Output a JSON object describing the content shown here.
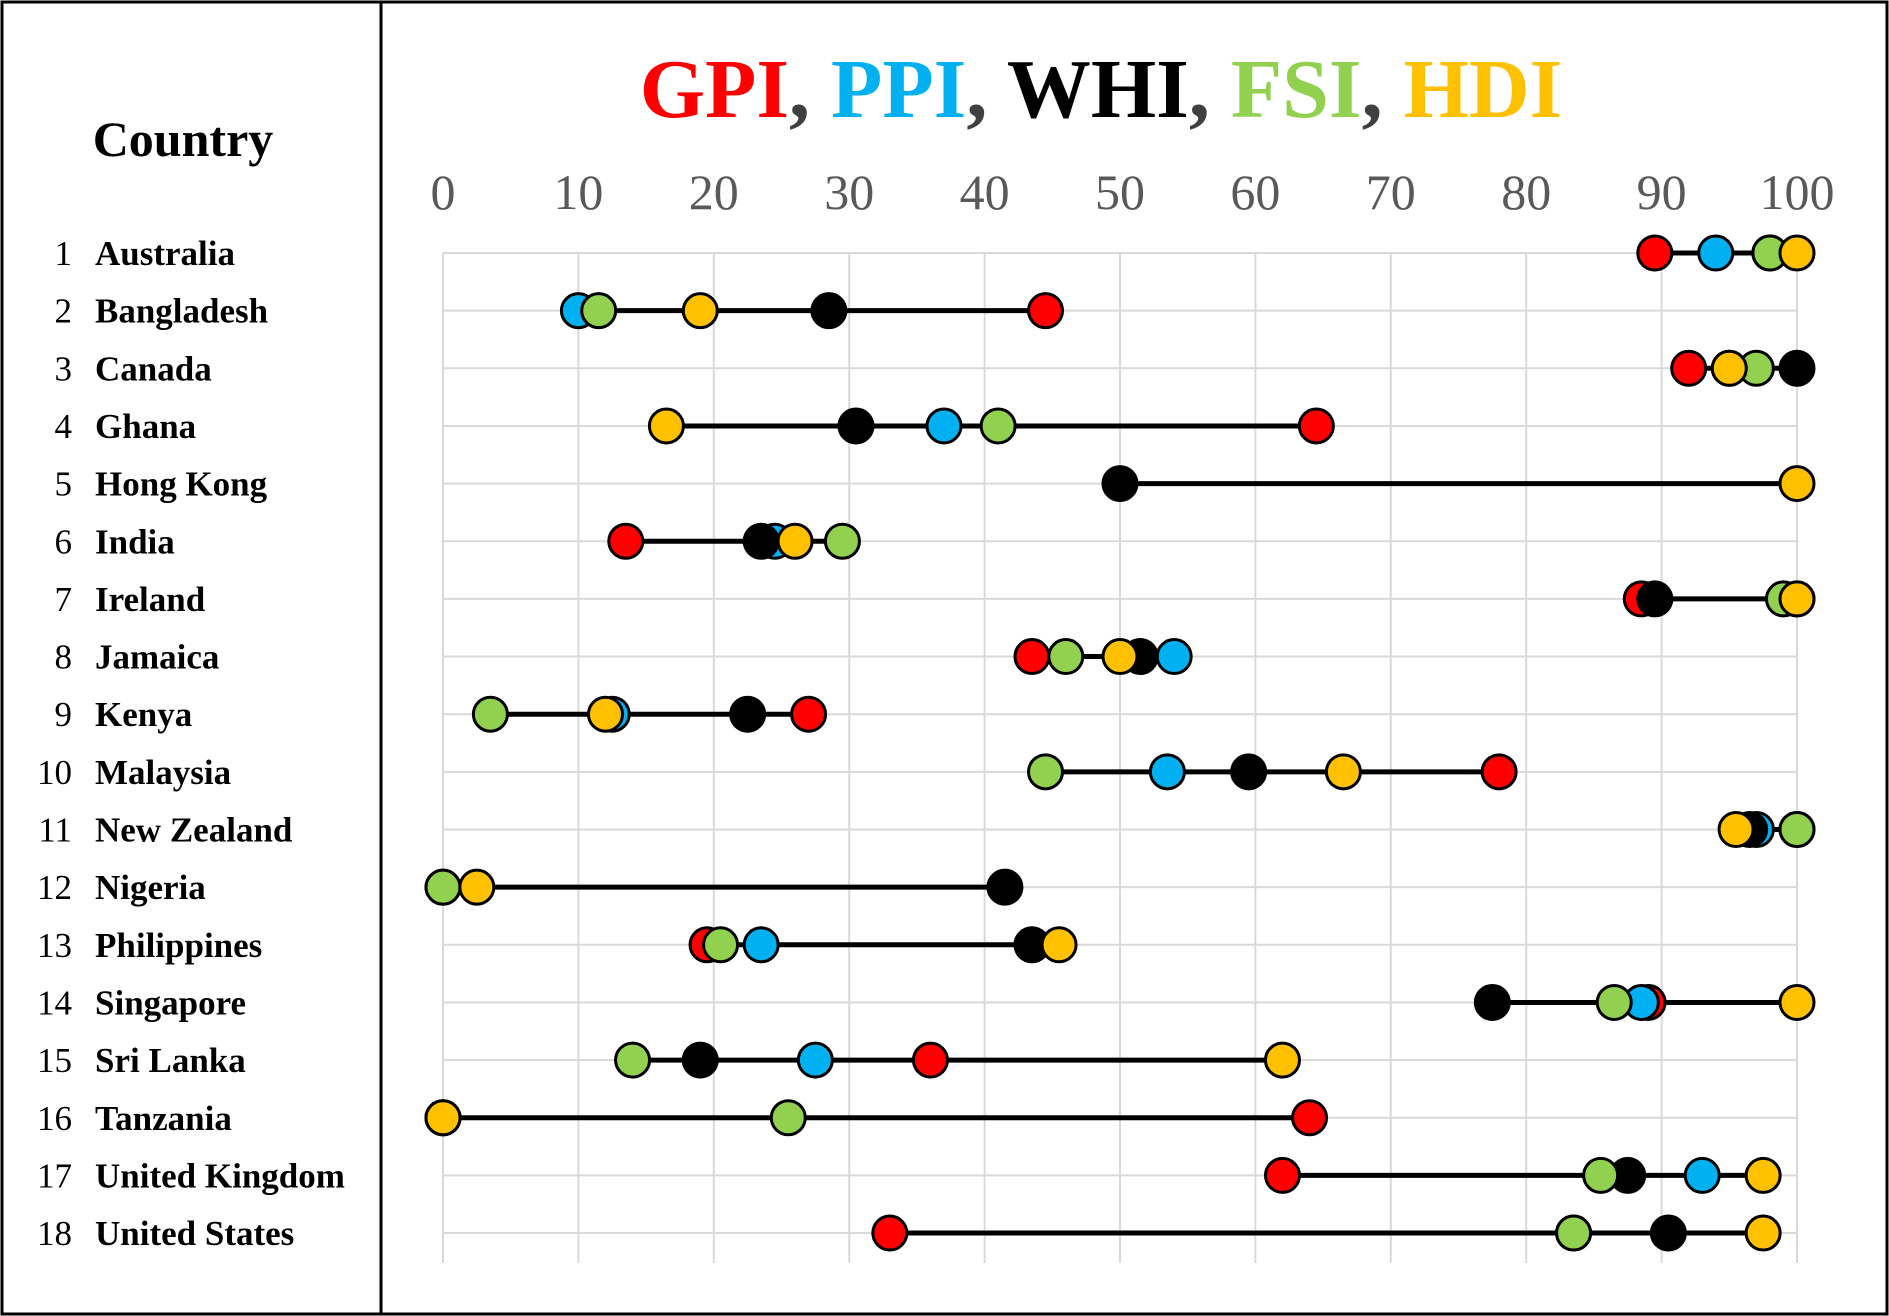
{
  "chart_data": {
    "type": "scatter",
    "title_parts": [
      {
        "text": "GPI",
        "color": "#ff0000"
      },
      {
        "text": ", ",
        "color": "#404040"
      },
      {
        "text": "PPI",
        "color": "#00b0f0"
      },
      {
        "text": ", ",
        "color": "#404040"
      },
      {
        "text": "WHI",
        "color": "#000000"
      },
      {
        "text": ", ",
        "color": "#404040"
      },
      {
        "text": "FSI",
        "color": "#92d050"
      },
      {
        "text": ", ",
        "color": "#404040"
      },
      {
        "text": "HDI",
        "color": "#ffc000"
      }
    ],
    "row_header": "Country",
    "x_ticks": [
      0,
      10,
      20,
      30,
      40,
      50,
      60,
      70,
      80,
      90,
      100
    ],
    "xlim": [
      0,
      100
    ],
    "grid": true,
    "series_colors": {
      "GPI": "#ff0000",
      "PPI": "#00b0f0",
      "WHI": "#000000",
      "FSI": "#92d050",
      "HDI": "#ffc000"
    },
    "rows": [
      {
        "rank": "1",
        "country": "Australia",
        "GPI": 89.5,
        "PPI": 94,
        "WHI": 98,
        "FSI": 98,
        "HDI": 100
      },
      {
        "rank": "2",
        "country": "Bangladesh",
        "GPI": 44.5,
        "PPI": 10,
        "WHI": 28.5,
        "FSI": 11.5,
        "HDI": 19
      },
      {
        "rank": "3",
        "country": "Canada",
        "GPI": 92,
        "PPI": 95,
        "WHI": 100,
        "FSI": 97,
        "HDI": 95
      },
      {
        "rank": "4",
        "country": "Ghana",
        "GPI": 64.5,
        "PPI": 37,
        "WHI": 30.5,
        "FSI": 41,
        "HDI": 16.5
      },
      {
        "rank": "5",
        "country": "Hong Kong",
        "WHI": 50,
        "HDI": 100
      },
      {
        "rank": "6",
        "country": "India",
        "GPI": 13.5,
        "PPI": 24.5,
        "WHI": 23.5,
        "FSI": 29.5,
        "HDI": 26
      },
      {
        "rank": "7",
        "country": "Ireland",
        "GPI": 88.5,
        "PPI": 100,
        "WHI": 89.5,
        "FSI": 99,
        "HDI": 100
      },
      {
        "rank": "8",
        "country": "Jamaica",
        "GPI": 43.5,
        "PPI": 54,
        "WHI": 51.5,
        "FSI": 46,
        "HDI": 50
      },
      {
        "rank": "9",
        "country": "Kenya",
        "GPI": 27,
        "PPI": 12.5,
        "WHI": 22.5,
        "FSI": 3.5,
        "HDI": 12
      },
      {
        "rank": "10",
        "country": "Malaysia",
        "GPI": 78,
        "PPI": 53.5,
        "WHI": 59.5,
        "FSI": 44.5,
        "HDI": 66.5
      },
      {
        "rank": "11",
        "country": "New Zealand",
        "GPI": 100,
        "PPI": 97,
        "WHI": 96.5,
        "FSI": 100,
        "HDI": 95.5
      },
      {
        "rank": "12",
        "country": "Nigeria",
        "GPI": 0,
        "WHI": 41.5,
        "FSI": 0,
        "HDI": 2.5
      },
      {
        "rank": "13",
        "country": "Philippines",
        "GPI": 19.5,
        "PPI": 23.5,
        "WHI": 43.5,
        "FSI": 20.5,
        "HDI": 45.5
      },
      {
        "rank": "14",
        "country": "Singapore",
        "GPI": 89,
        "PPI": 88.5,
        "WHI": 77.5,
        "FSI": 86.5,
        "HDI": 100
      },
      {
        "rank": "15",
        "country": "Sri Lanka",
        "GPI": 36,
        "PPI": 27.5,
        "WHI": 19,
        "FSI": 14,
        "HDI": 62
      },
      {
        "rank": "16",
        "country": "Tanzania",
        "GPI": 64,
        "PPI": 0,
        "WHI": 0,
        "FSI": 25.5,
        "HDI": 0
      },
      {
        "rank": "17",
        "country": "United Kingdom",
        "GPI": 62,
        "PPI": 93,
        "WHI": 87.5,
        "FSI": 85.5,
        "HDI": 97.5
      },
      {
        "rank": "18",
        "country": "United States",
        "GPI": 33,
        "PPI": 83.5,
        "WHI": 90.5,
        "FSI": 83.5,
        "HDI": 97.5
      }
    ]
  }
}
